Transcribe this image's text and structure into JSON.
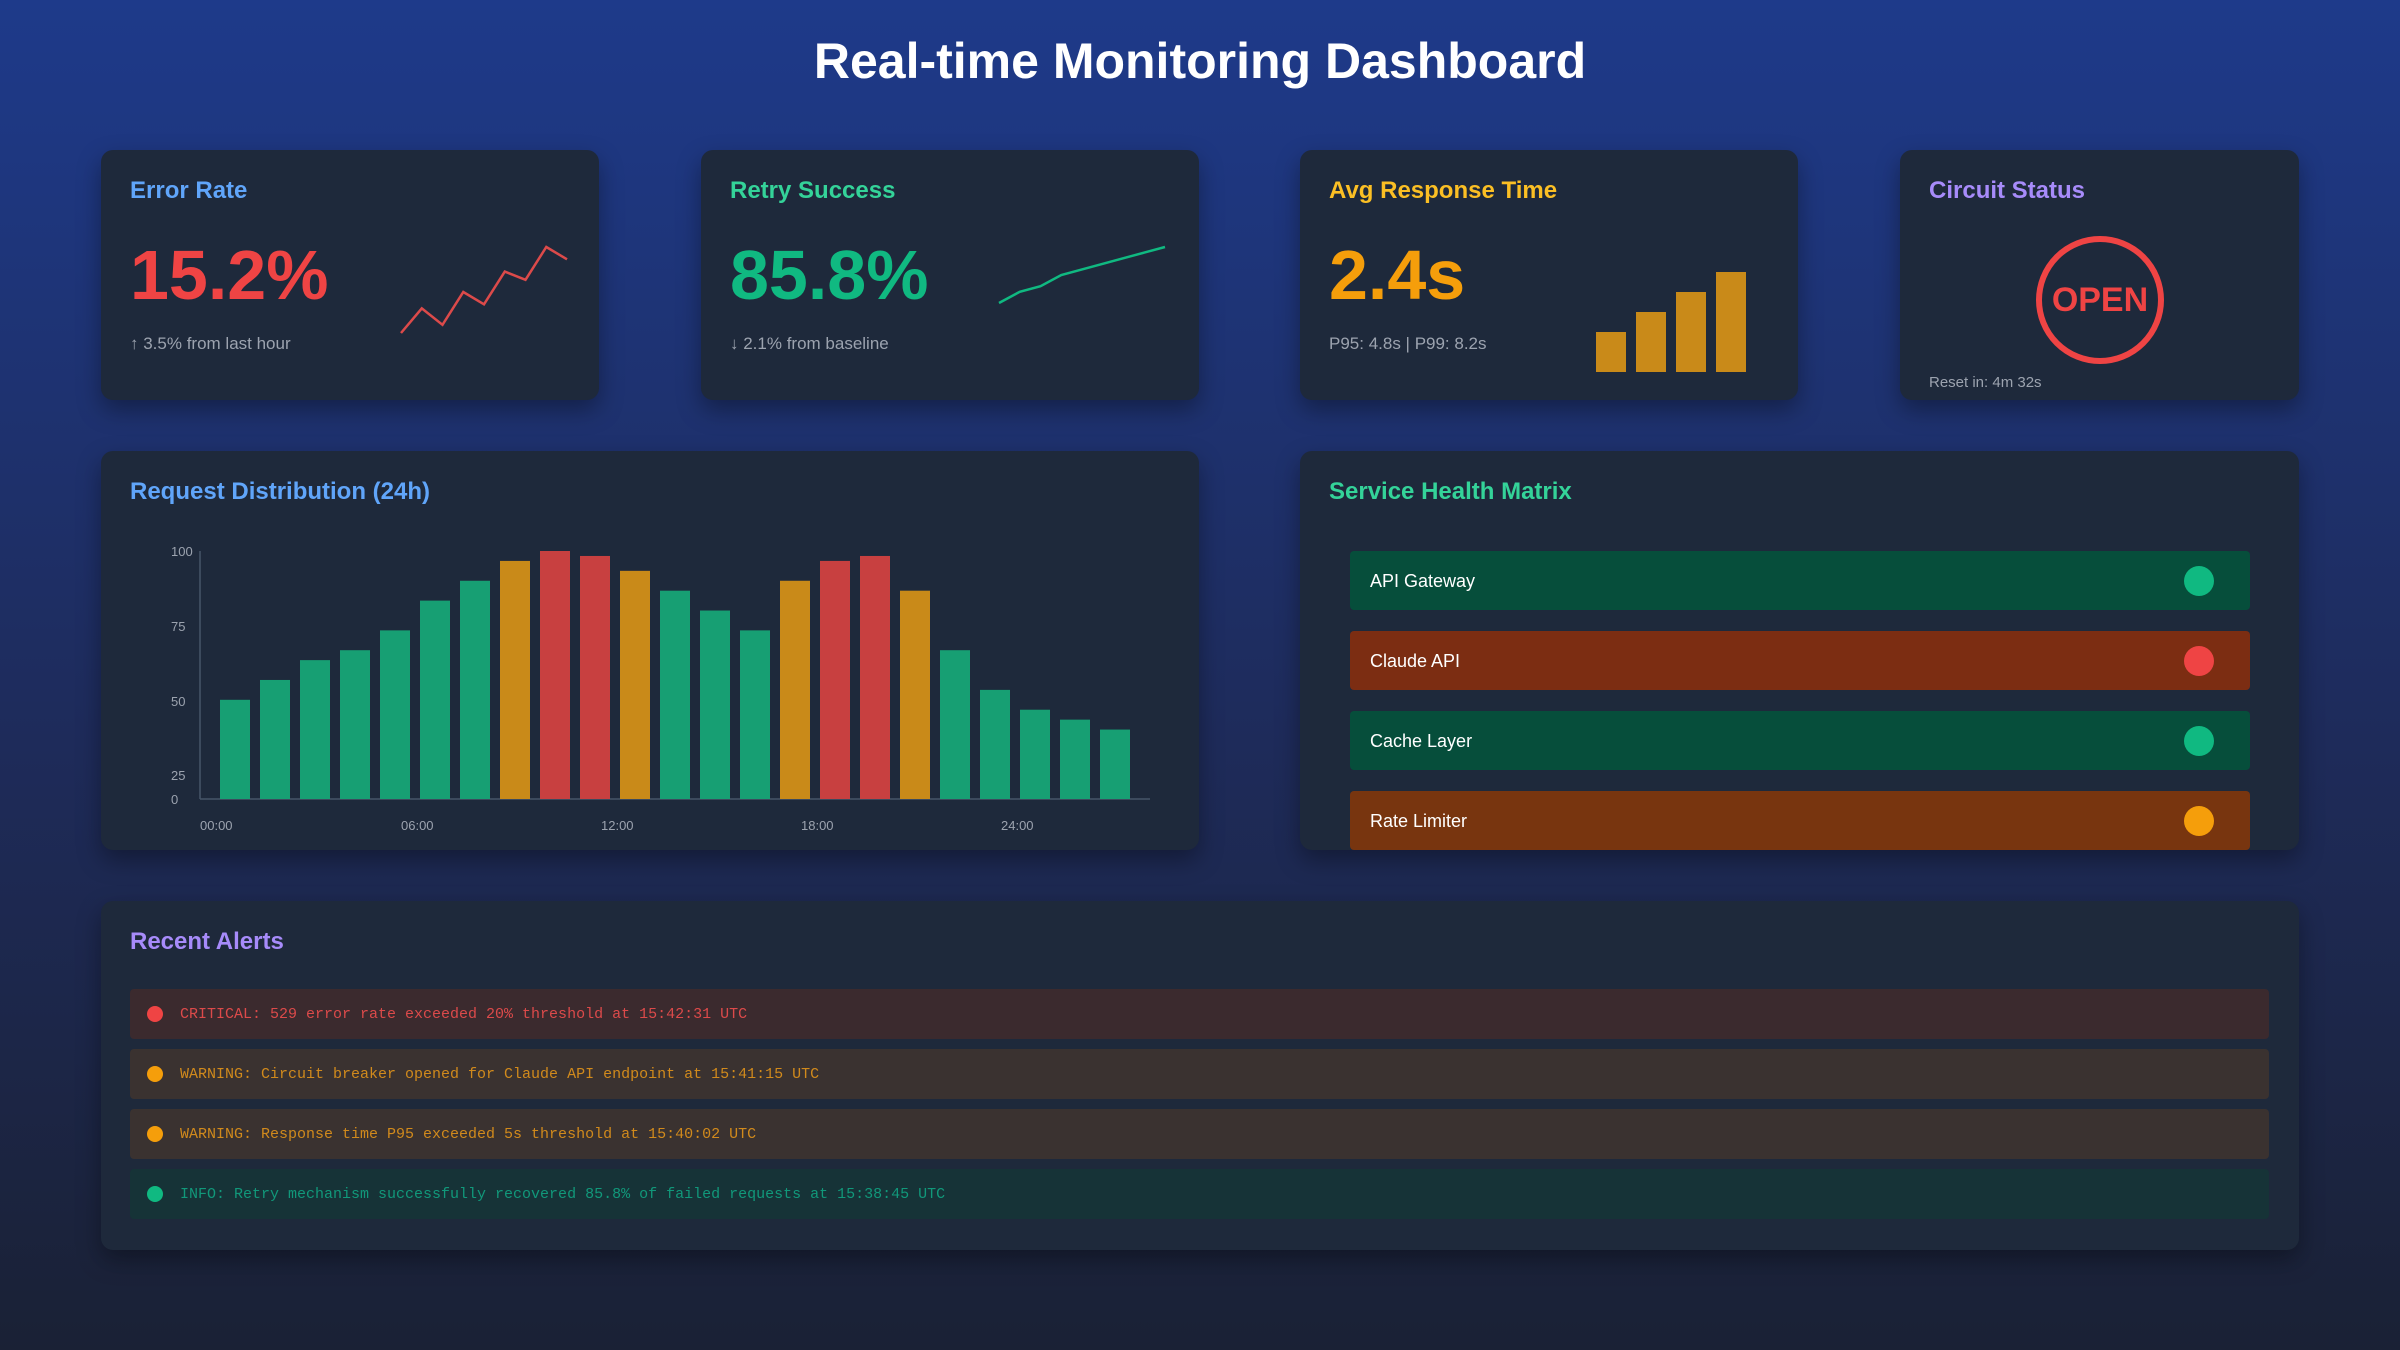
{
  "header": {
    "title": "Real-time Monitoring Dashboard"
  },
  "colors": {
    "blue": "#60a5fa",
    "green": "#10b981",
    "amber": "#f59e0b",
    "red": "#ef4444",
    "purple": "#a78bfa",
    "amber_bar": "#c98a19",
    "red_bar": "#c84040",
    "green_bar": "#179f73"
  },
  "cards": {
    "error_rate": {
      "title": "Error Rate",
      "value": "15.2%",
      "sub": "↑ 3.5% from last hour",
      "sparkline": [
        3,
        9,
        5,
        13,
        10,
        18,
        16,
        24,
        21
      ]
    },
    "retry_success": {
      "title": "Retry Success",
      "value": "85.8%",
      "sub": "↓ 2.1% from baseline",
      "sparkline": [
        2,
        6,
        8,
        12,
        14,
        16,
        18,
        20,
        22
      ]
    },
    "avg_response": {
      "title": "Avg Response Time",
      "value": "2.4s",
      "sub": "P95: 4.8s | P99: 8.2s",
      "bars": [
        40,
        60,
        80,
        100
      ]
    },
    "circuit": {
      "title": "Circuit Status",
      "state": "OPEN",
      "reset": "Reset in: 4m 32s"
    }
  },
  "distribution": {
    "title": "Request Distribution (24h)"
  },
  "chart_data": {
    "type": "bar",
    "title": "Request Distribution (24h)",
    "y_ticks": [
      "100",
      "75",
      "50",
      "25",
      "0"
    ],
    "x_ticks": [
      "00:00",
      "06:00",
      "12:00",
      "18:00",
      "24:00"
    ],
    "ylim": [
      0,
      100
    ],
    "values": [
      40,
      48,
      56,
      60,
      68,
      80,
      88,
      96,
      100,
      98,
      92,
      84,
      76,
      68,
      88,
      96,
      98,
      84,
      60,
      44,
      36,
      32,
      28
    ],
    "status": [
      "ok",
      "ok",
      "ok",
      "ok",
      "ok",
      "ok",
      "ok",
      "warn",
      "crit",
      "crit",
      "warn",
      "ok",
      "ok",
      "ok",
      "warn",
      "crit",
      "crit",
      "warn",
      "ok",
      "ok",
      "ok",
      "ok",
      "ok"
    ]
  },
  "health": {
    "title": "Service Health Matrix",
    "services": [
      {
        "name": "API Gateway",
        "status": "healthy"
      },
      {
        "name": "Claude API",
        "status": "critical"
      },
      {
        "name": "Cache Layer",
        "status": "healthy"
      },
      {
        "name": "Rate Limiter",
        "status": "warning"
      }
    ]
  },
  "alerts": {
    "title": "Recent Alerts",
    "items": [
      {
        "level": "critical",
        "text": "CRITICAL: 529 error rate exceeded 20% threshold at 15:42:31 UTC"
      },
      {
        "level": "warning",
        "text": "WARNING: Circuit breaker opened for Claude API endpoint at 15:41:15 UTC"
      },
      {
        "level": "warning",
        "text": "WARNING: Response time P95 exceeded 5s threshold at 15:40:02 UTC"
      },
      {
        "level": "info",
        "text": "INFO: Retry mechanism successfully recovered 85.8% of failed requests at 15:38:45 UTC"
      }
    ]
  }
}
